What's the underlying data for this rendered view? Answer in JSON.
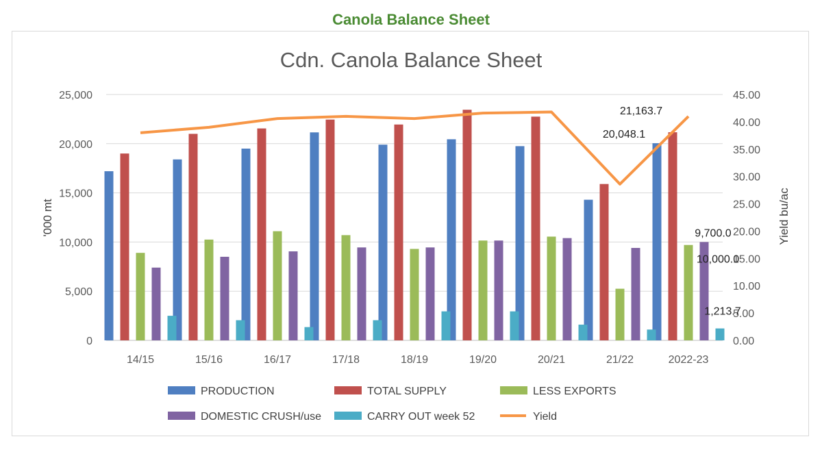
{
  "header": {
    "title": "Canola Balance Sheet",
    "title_color": "#4a8b33"
  },
  "chart_data": {
    "type": "bar",
    "title": "Cdn. Canola Balance Sheet",
    "ylabel": "'000 mt",
    "y2label": "Yield bu/ac",
    "ylim": [
      0,
      25000
    ],
    "y2lim": [
      0,
      45
    ],
    "yticks": [
      "0",
      "5,000",
      "10,000",
      "15,000",
      "20,000",
      "25,000"
    ],
    "y2ticks": [
      "0.00",
      "5.00",
      "10.00",
      "15.00",
      "20.00",
      "25.00",
      "30.00",
      "35.00",
      "40.00",
      "45.00"
    ],
    "categories": [
      "14/15",
      "15/16",
      "16/17",
      "17/18",
      "18/19",
      "19/20",
      "20/21",
      "21/22",
      "2022-23"
    ],
    "series": [
      {
        "name": "PRODUCTION",
        "color": "#4f7fc1",
        "values": [
          17200,
          18400,
          19500,
          21150,
          19900,
          20450,
          19750,
          14300,
          20048.1
        ]
      },
      {
        "name": "TOTAL SUPPLY",
        "color": "#c0504d",
        "values": [
          19000,
          21000,
          21550,
          22450,
          21950,
          23450,
          22750,
          15900,
          21163.7
        ]
      },
      {
        "name": "LESS EXPORTS",
        "color": "#9bbb59",
        "values": [
          8900,
          10250,
          11100,
          10700,
          9300,
          10150,
          10550,
          5250,
          9700
        ]
      },
      {
        "name": "DOMESTIC CRUSH/use",
        "color": "#8064a2",
        "values": [
          7400,
          8500,
          9050,
          9450,
          9450,
          10150,
          10400,
          9400,
          10000
        ]
      },
      {
        "name": "CARRY OUT week 52",
        "color": "#4bacc6",
        "values": [
          2500,
          2050,
          1350,
          2050,
          2950,
          2950,
          1600,
          1100,
          1213.7
        ]
      }
    ],
    "line_series": {
      "name": "Yield",
      "color": "#f79646",
      "axis": "secondary",
      "values": [
        38.0,
        39.0,
        40.6,
        41.0,
        40.6,
        41.6,
        41.8,
        28.6,
        41.0
      ]
    },
    "data_labels": [
      {
        "text": "20,048.1",
        "category": "2022-23",
        "series": "PRODUCTION"
      },
      {
        "text": "21,163.7",
        "category": "2022-23",
        "series": "TOTAL SUPPLY"
      },
      {
        "text": "9,700.0",
        "category": "2022-23",
        "series": "LESS EXPORTS"
      },
      {
        "text": "10,000.0",
        "category": "2022-23",
        "series": "DOMESTIC CRUSH/use"
      },
      {
        "text": "1,213.7",
        "category": "2022-23",
        "series": "CARRY OUT week 52"
      }
    ],
    "grid": true,
    "legend_position": "bottom"
  }
}
